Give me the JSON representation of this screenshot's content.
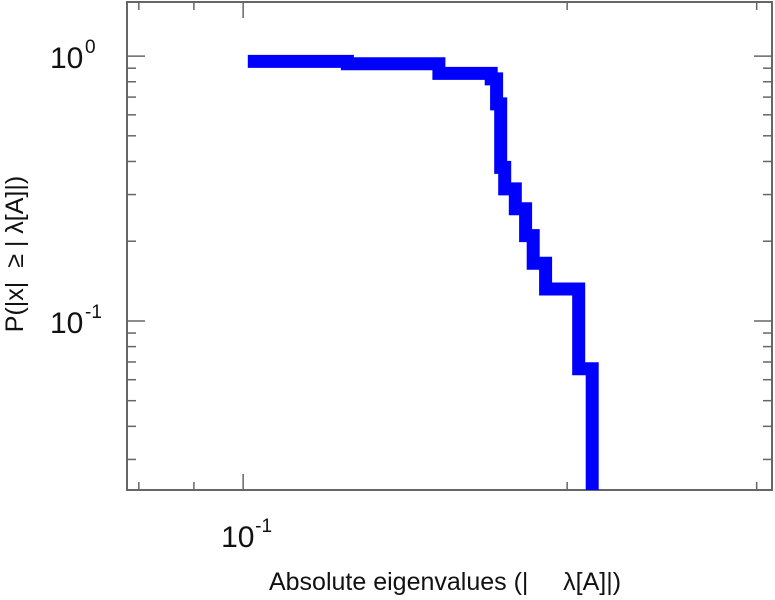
{
  "chart_data": {
    "type": "line",
    "title": "",
    "xlabel": "Absolute eigenvalues (|     λ[A]|)",
    "ylabel": "P(|x|  ≥ | λ[A]|)",
    "x_scale": "log",
    "y_scale": "log",
    "xlim": [
      0.078,
      0.31
    ],
    "ylim": [
      0.023,
      1.6
    ],
    "grid": false,
    "legend": "none",
    "x_ticks": [
      {
        "base": "10",
        "exp": "-1",
        "value": 0.1
      }
    ],
    "y_ticks": [
      {
        "base": "10",
        "exp": "0",
        "value": 1.0
      },
      {
        "base": "10",
        "exp": "-1",
        "value": 0.1
      }
    ],
    "series": [
      {
        "color": "#0000ff",
        "step_points": [
          [
            0.101,
            0.955
          ],
          [
            0.125,
            0.955
          ],
          [
            0.125,
            0.935
          ],
          [
            0.152,
            0.935
          ],
          [
            0.152,
            0.86
          ],
          [
            0.17,
            0.86
          ],
          [
            0.17,
            0.82
          ],
          [
            0.172,
            0.82
          ],
          [
            0.172,
            0.66
          ],
          [
            0.1735,
            0.66
          ],
          [
            0.1735,
            0.38
          ],
          [
            0.175,
            0.38
          ],
          [
            0.175,
            0.315
          ],
          [
            0.179,
            0.315
          ],
          [
            0.179,
            0.265
          ],
          [
            0.183,
            0.265
          ],
          [
            0.183,
            0.21
          ],
          [
            0.186,
            0.21
          ],
          [
            0.186,
            0.165
          ],
          [
            0.191,
            0.165
          ],
          [
            0.191,
            0.132
          ],
          [
            0.205,
            0.132
          ],
          [
            0.205,
            0.066
          ],
          [
            0.211,
            0.066
          ],
          [
            0.211,
            0.023
          ]
        ]
      }
    ]
  }
}
